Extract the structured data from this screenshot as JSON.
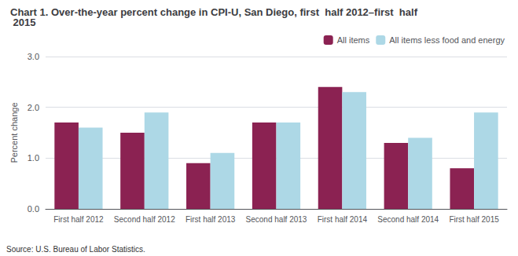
{
  "chart_data": {
    "type": "bar",
    "title": "Chart 1. Over-the-year percent change in CPI-U, San Diego, first  half 2012–first  half 2015",
    "ylabel": "Percent change",
    "annotations": [
      "Source: U.S. Bureau of Labor Statistics."
    ],
    "categories": [
      "First half 2012",
      "Second half 2012",
      "First half 2013",
      "Second half 2013",
      "First half 2014",
      "Second half 2014",
      "First half 2015"
    ],
    "series": [
      {
        "name": "All items",
        "color": "#8B2252",
        "values": [
          1.7,
          1.5,
          0.9,
          1.7,
          2.4,
          1.3,
          0.8
        ]
      },
      {
        "name": "All items less food and energy",
        "color": "#ADD8E6",
        "values": [
          1.6,
          1.9,
          1.1,
          1.7,
          2.3,
          1.4,
          1.9
        ]
      }
    ],
    "ylim": [
      0,
      3.0
    ],
    "yticks": [
      {
        "value": 0.0,
        "label": "0.0"
      },
      {
        "value": 1.0,
        "label": "1.0"
      },
      {
        "value": 2.0,
        "label": "2.0"
      },
      {
        "value": 3.0,
        "label": "3.0"
      }
    ],
    "grid": true,
    "legend": "upper right"
  }
}
